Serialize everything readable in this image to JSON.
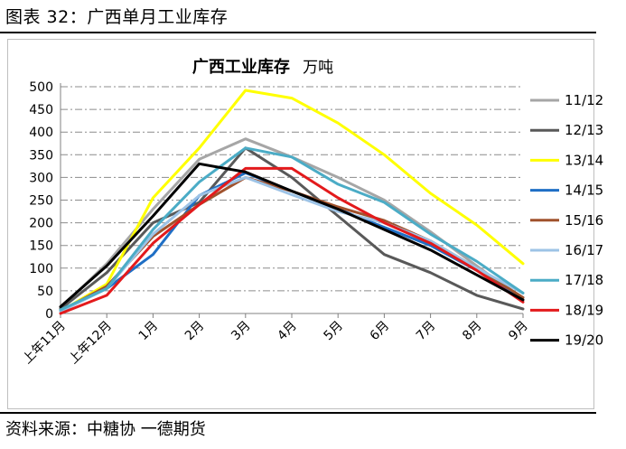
{
  "figure": {
    "title": "图表 32：广西单月工业库存",
    "source": "资料来源：中糖协  一德期货"
  },
  "chart_data": {
    "type": "line",
    "title": "广西工业库存",
    "unit": "万吨",
    "categories": [
      "上年11月",
      "上年12月",
      "1月",
      "2月",
      "3月",
      "4月",
      "5月",
      "6月",
      "7月",
      "8月",
      "9月"
    ],
    "ylim": [
      0,
      500
    ],
    "yticks": [
      0,
      50,
      100,
      150,
      200,
      250,
      300,
      350,
      400,
      450,
      500
    ],
    "grid": true,
    "legend_position": "right",
    "series": [
      {
        "name": "11/12",
        "color": "#a6a6a6",
        "values": [
          12,
          110,
          230,
          340,
          385,
          345,
          300,
          250,
          180,
          105,
          30
        ]
      },
      {
        "name": "12/13",
        "color": "#595959",
        "values": [
          10,
          90,
          200,
          245,
          365,
          300,
          215,
          130,
          90,
          40,
          10
        ]
      },
      {
        "name": "13/14",
        "color": "#ffff00",
        "values": [
          5,
          65,
          255,
          365,
          492,
          475,
          420,
          350,
          265,
          195,
          110
        ]
      },
      {
        "name": "14/15",
        "color": "#1f6fc5",
        "values": [
          5,
          55,
          130,
          260,
          310,
          270,
          230,
          190,
          150,
          95,
          35
        ]
      },
      {
        "name": "15/16",
        "color": "#a0522d",
        "values": [
          5,
          60,
          170,
          240,
          300,
          270,
          235,
          205,
          160,
          100,
          35
        ]
      },
      {
        "name": "16/17",
        "color": "#9dc3e6",
        "values": [
          5,
          55,
          175,
          260,
          300,
          262,
          225,
          200,
          160,
          100,
          45
        ]
      },
      {
        "name": "17/18",
        "color": "#4bacc6",
        "values": [
          8,
          55,
          185,
          290,
          365,
          345,
          285,
          245,
          175,
          115,
          45
        ]
      },
      {
        "name": "18/19",
        "color": "#e31a1c",
        "values": [
          0,
          40,
          155,
          240,
          320,
          320,
          255,
          200,
          155,
          95,
          25
        ]
      },
      {
        "name": "19/20",
        "color": "#000000",
        "values": [
          15,
          105,
          215,
          330,
          312,
          270,
          230,
          185,
          140,
          85,
          30
        ]
      }
    ]
  }
}
